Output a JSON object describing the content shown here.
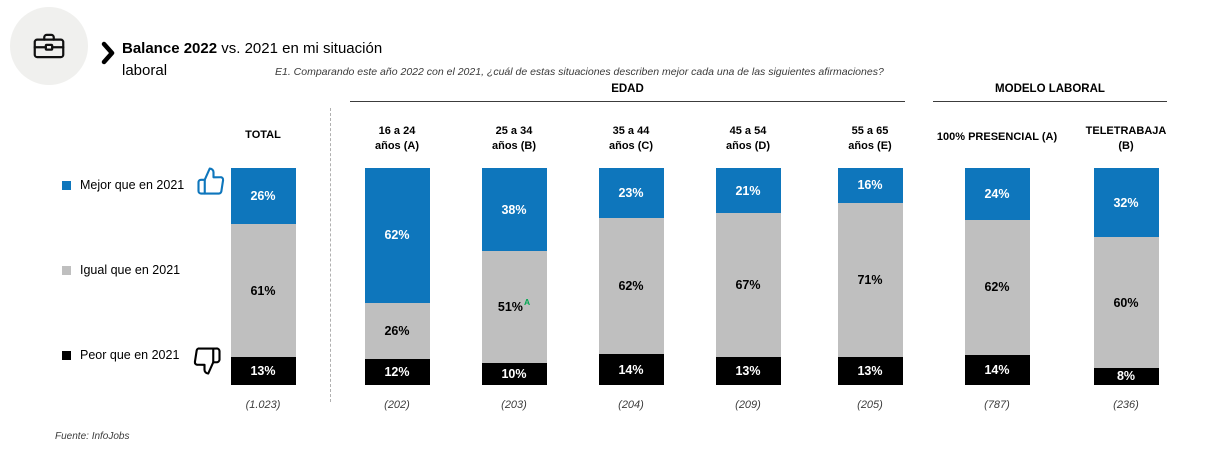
{
  "header": {
    "title_bold": "Balance 2022",
    "title_rest": " vs. 2021 en mi situación laboral",
    "question": "E1. Comparando este año 2022 con el 2021, ¿cuál de estas situaciones describen mejor cada una de las siguientes afirmaciones?"
  },
  "groups": {
    "edad": "EDAD",
    "modelo": "MODELO LABORAL"
  },
  "legend": [
    {
      "label": "Mejor que en 2021",
      "color": "#0E76BC",
      "icon": "thumbs-up-icon"
    },
    {
      "label": "Igual que en 2021",
      "color": "#BFBFBF"
    },
    {
      "label": "Peor que en 2021",
      "color": "#000000",
      "icon": "thumbs-down-icon"
    }
  ],
  "footer": "Fuente: InfoJobs",
  "chart_data": {
    "type": "bar",
    "variant": "100%-stacked-columns",
    "categories": [
      "TOTAL",
      "16 a 24 años (A)",
      "25 a 34 años (B)",
      "35 a 44 años (C)",
      "45 a 54 años (D)",
      "55 a 65 años (E)",
      "100% PRESENCIAL (A)",
      "TELETRABAJA (B)"
    ],
    "bases": [
      "(1.023)",
      "(202)",
      "(203)",
      "(204)",
      "(209)",
      "(205)",
      "(787)",
      "(236)"
    ],
    "series": [
      {
        "name": "Mejor que en 2021",
        "color": "#0E76BC",
        "label_color": "#FFFFFF",
        "values": [
          26,
          62,
          38,
          23,
          21,
          16,
          24,
          32
        ]
      },
      {
        "name": "Igual que en 2021",
        "color": "#BFBFBF",
        "label_color": "#000000",
        "values": [
          61,
          26,
          51,
          62,
          67,
          71,
          62,
          60
        ]
      },
      {
        "name": "Peor que en 2021",
        "color": "#000000",
        "label_color": "#FFFFFF",
        "values": [
          13,
          12,
          10,
          14,
          13,
          13,
          14,
          8
        ]
      }
    ],
    "significance": [
      {
        "column_index": 2,
        "series_index": 1,
        "mark": "A",
        "color": "#00A651"
      }
    ],
    "value_suffix": "%",
    "group_spans": [
      {
        "label": "EDAD",
        "first_column": 1,
        "last_column": 5
      },
      {
        "label": "MODELO LABORAL",
        "first_column": 6,
        "last_column": 7
      }
    ]
  }
}
